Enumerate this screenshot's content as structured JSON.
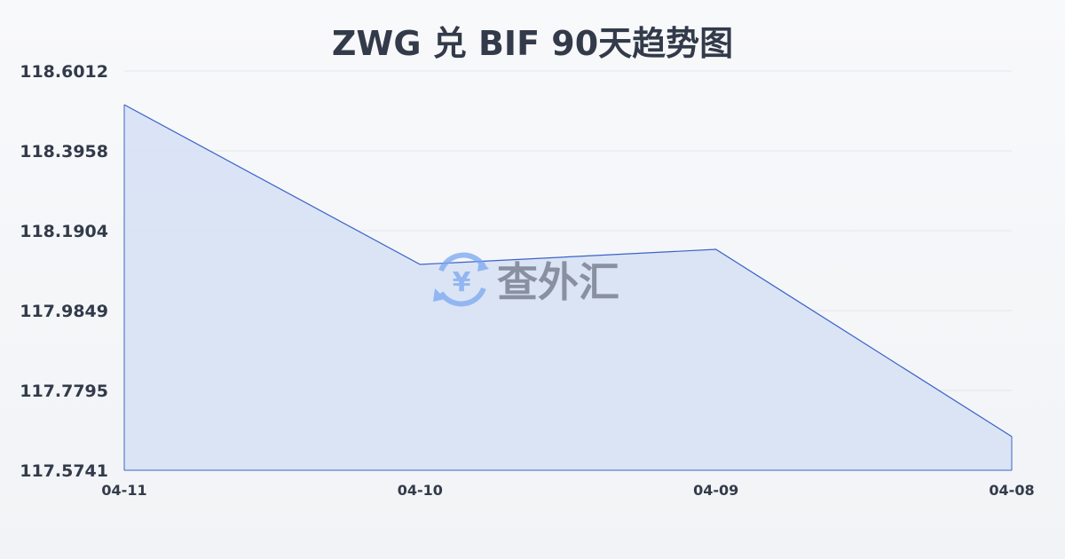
{
  "chart_data": {
    "type": "area",
    "title": "ZWG 兑 BIF 90天趋势图",
    "categories": [
      "04-11",
      "04-10",
      "04-09",
      "04-08"
    ],
    "series": [
      {
        "values": [
          118.5145,
          118.1036,
          118.1424,
          117.6608
        ]
      }
    ],
    "yticks": [
      "118.6012",
      "118.3958",
      "118.1904",
      "117.9849",
      "117.7795",
      "117.5741"
    ],
    "ylim": [
      117.5741,
      118.6012
    ],
    "grid": true,
    "colors": {
      "line": "#3a63c9",
      "fill": "#d6e0f5",
      "grid": "#e3e6eb",
      "text": "#333b4a"
    }
  },
  "watermark": {
    "text": "查外汇",
    "icon": "yen-exchange-icon"
  }
}
